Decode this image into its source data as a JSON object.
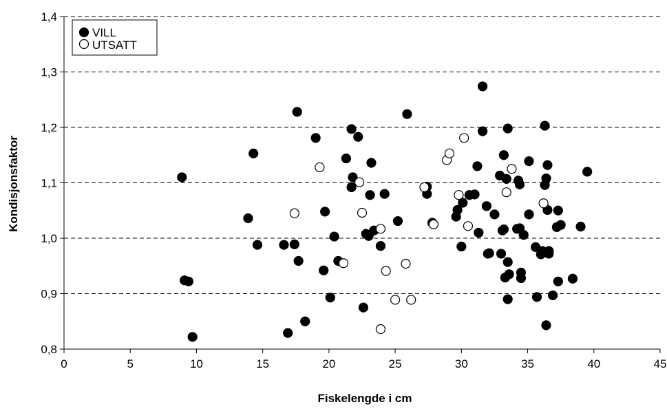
{
  "chart_data": {
    "type": "scatter",
    "xlabel": "Fiskelengde i cm",
    "ylabel": "Kondisjonsfaktor",
    "xlim": [
      0,
      45
    ],
    "ylim": [
      0.8,
      1.4
    ],
    "x_ticks": [
      0,
      5,
      10,
      15,
      20,
      25,
      30,
      35,
      40,
      45
    ],
    "y_ticks": [
      0.8,
      0.9,
      1.0,
      1.1,
      1.2,
      1.3,
      1.4
    ],
    "x_tick_labels": [
      "0",
      "5",
      "10",
      "15",
      "20",
      "25",
      "30",
      "35",
      "40",
      "45"
    ],
    "y_tick_labels": [
      "0,8",
      "0,9",
      "1,0",
      "1,1",
      "1,2",
      "1,3",
      "1,4"
    ],
    "grid": "horizontal dashed",
    "legend_position": "top-left",
    "series": [
      {
        "name": "VILL",
        "marker": "filled-circle",
        "color": "#000000",
        "points": [
          [
            8.9,
            1.11
          ],
          [
            9.1,
            0.924
          ],
          [
            9.4,
            0.922
          ],
          [
            9.7,
            0.822
          ],
          [
            13.9,
            1.036
          ],
          [
            14.3,
            1.153
          ],
          [
            14.6,
            0.988
          ],
          [
            16.6,
            0.988
          ],
          [
            16.9,
            0.829
          ],
          [
            17.4,
            0.989
          ],
          [
            17.6,
            1.228
          ],
          [
            17.7,
            0.959
          ],
          [
            18.2,
            0.85
          ],
          [
            19.0,
            1.181
          ],
          [
            19.6,
            0.942
          ],
          [
            19.7,
            1.048
          ],
          [
            20.1,
            0.893
          ],
          [
            20.4,
            1.003
          ],
          [
            20.7,
            0.959
          ],
          [
            21.3,
            1.144
          ],
          [
            21.7,
            1.197
          ],
          [
            21.7,
            1.092
          ],
          [
            21.8,
            1.11
          ],
          [
            22.2,
            1.183
          ],
          [
            22.6,
            0.875
          ],
          [
            22.8,
            1.008
          ],
          [
            23.0,
            1.004
          ],
          [
            23.1,
            1.078
          ],
          [
            23.2,
            1.136
          ],
          [
            23.4,
            1.014
          ],
          [
            23.9,
            0.986
          ],
          [
            24.2,
            1.08
          ],
          [
            25.2,
            1.031
          ],
          [
            25.9,
            1.224
          ],
          [
            27.4,
            1.093
          ],
          [
            27.4,
            1.08
          ],
          [
            27.8,
            1.028
          ],
          [
            29.6,
            1.039
          ],
          [
            29.7,
            1.051
          ],
          [
            30.0,
            0.985
          ],
          [
            30.1,
            1.064
          ],
          [
            30.6,
            1.078
          ],
          [
            31.0,
            1.079
          ],
          [
            31.2,
            1.13
          ],
          [
            31.3,
            1.01
          ],
          [
            31.6,
            1.274
          ],
          [
            31.6,
            1.193
          ],
          [
            31.9,
            1.058
          ],
          [
            32.0,
            0.972
          ],
          [
            32.1,
            0.973
          ],
          [
            32.5,
            1.043
          ],
          [
            32.9,
            1.113
          ],
          [
            33.0,
            0.972
          ],
          [
            33.1,
            1.014
          ],
          [
            33.2,
            1.016
          ],
          [
            33.2,
            1.15
          ],
          [
            33.3,
            0.929
          ],
          [
            33.4,
            1.107
          ],
          [
            33.5,
            1.198
          ],
          [
            33.5,
            0.957
          ],
          [
            33.5,
            0.89
          ],
          [
            33.6,
            0.935
          ],
          [
            34.2,
            1.017
          ],
          [
            34.3,
            1.104
          ],
          [
            34.4,
            1.018
          ],
          [
            34.4,
            1.097
          ],
          [
            34.5,
            0.938
          ],
          [
            34.5,
            0.928
          ],
          [
            34.7,
            1.006
          ],
          [
            35.1,
            1.139
          ],
          [
            35.1,
            1.043
          ],
          [
            35.6,
            0.984
          ],
          [
            35.7,
            0.894
          ],
          [
            36.0,
            0.971
          ],
          [
            36.1,
            0.977
          ],
          [
            36.3,
            1.096
          ],
          [
            36.3,
            1.203
          ],
          [
            36.4,
            0.843
          ],
          [
            36.4,
            1.108
          ],
          [
            36.5,
            1.051
          ],
          [
            36.5,
            1.132
          ],
          [
            36.6,
            0.972
          ],
          [
            36.6,
            0.977
          ],
          [
            36.9,
            0.897
          ],
          [
            37.2,
            1.02
          ],
          [
            37.3,
            0.922
          ],
          [
            37.3,
            1.05
          ],
          [
            37.5,
            1.024
          ],
          [
            38.4,
            0.927
          ],
          [
            39.0,
            1.021
          ],
          [
            39.5,
            1.12
          ]
        ]
      },
      {
        "name": "UTSATT",
        "marker": "open-circle",
        "color": "#000000",
        "points": [
          [
            17.4,
            1.045
          ],
          [
            19.3,
            1.128
          ],
          [
            21.1,
            0.955
          ],
          [
            22.3,
            1.101
          ],
          [
            22.5,
            1.046
          ],
          [
            23.9,
            1.017
          ],
          [
            23.9,
            0.836
          ],
          [
            24.3,
            0.941
          ],
          [
            25.0,
            0.889
          ],
          [
            25.8,
            0.954
          ],
          [
            26.2,
            0.889
          ],
          [
            27.2,
            1.092
          ],
          [
            27.9,
            1.025
          ],
          [
            28.9,
            1.141
          ],
          [
            29.1,
            1.153
          ],
          [
            29.8,
            1.078
          ],
          [
            30.2,
            1.181
          ],
          [
            30.5,
            1.022
          ],
          [
            33.4,
            1.083
          ],
          [
            33.8,
            1.125
          ],
          [
            36.2,
            1.063
          ]
        ]
      }
    ]
  }
}
